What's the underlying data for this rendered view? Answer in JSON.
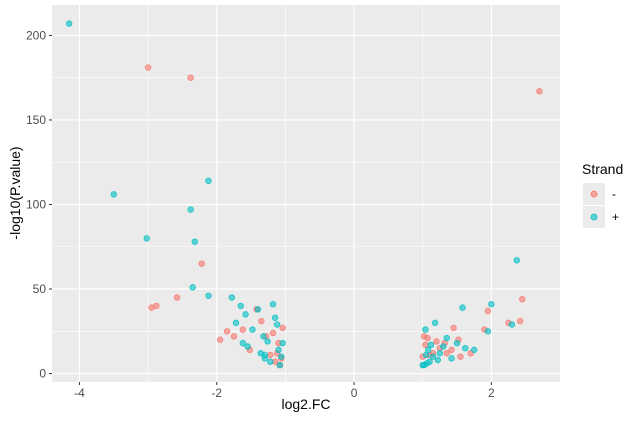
{
  "chart_data": {
    "type": "scatter",
    "xlabel": "log2.FC",
    "ylabel": "-log10(P.value)",
    "xlim": [
      -4.4,
      3.0
    ],
    "ylim": [
      -5,
      218
    ],
    "x_ticks": [
      -4,
      -2,
      0,
      2
    ],
    "y_ticks": [
      0,
      50,
      100,
      150,
      200
    ],
    "x_tick_labels": [
      "-4",
      "-2",
      "0",
      "2"
    ],
    "y_tick_labels": [
      "0",
      "50",
      "100",
      "150",
      "200"
    ],
    "grid": true,
    "legend": {
      "title": "Strand",
      "placement": "right"
    },
    "colors": {
      "-": "#F8766D",
      "+": "#00BFC4",
      "panel": "#EBEBEB",
      "grid": "#FFFFFF"
    },
    "series": [
      {
        "name": "-",
        "points": [
          [
            -3.0,
            181
          ],
          [
            -2.38,
            175
          ],
          [
            -2.22,
            65
          ],
          [
            -2.58,
            45
          ],
          [
            -2.88,
            40
          ],
          [
            -2.95,
            39
          ],
          [
            -1.95,
            20
          ],
          [
            -1.85,
            25
          ],
          [
            -1.75,
            22
          ],
          [
            -1.62,
            26
          ],
          [
            -1.52,
            14
          ],
          [
            -1.42,
            38
          ],
          [
            -1.35,
            31
          ],
          [
            -1.28,
            22
          ],
          [
            -1.22,
            11
          ],
          [
            -1.18,
            24
          ],
          [
            -1.15,
            7
          ],
          [
            -1.12,
            12
          ],
          [
            -1.1,
            18
          ],
          [
            -1.08,
            5
          ],
          [
            -1.06,
            9
          ],
          [
            -1.04,
            27
          ],
          [
            2.7,
            167
          ],
          [
            2.45,
            44
          ],
          [
            2.42,
            31
          ],
          [
            2.25,
            30
          ],
          [
            1.95,
            37
          ],
          [
            1.9,
            26
          ],
          [
            1.7,
            12
          ],
          [
            1.55,
            10
          ],
          [
            1.52,
            20
          ],
          [
            1.45,
            27
          ],
          [
            1.42,
            14
          ],
          [
            1.35,
            12
          ],
          [
            1.32,
            18
          ],
          [
            1.25,
            15
          ],
          [
            1.2,
            19
          ],
          [
            1.15,
            12
          ],
          [
            1.1,
            11
          ],
          [
            1.07,
            21
          ],
          [
            1.04,
            17
          ],
          [
            1.02,
            22
          ],
          [
            1.0,
            10
          ]
        ]
      },
      {
        "name": "+",
        "points": [
          [
            -4.15,
            207
          ],
          [
            -3.5,
            106
          ],
          [
            -3.02,
            80
          ],
          [
            -2.12,
            114
          ],
          [
            -2.38,
            97
          ],
          [
            -2.32,
            78
          ],
          [
            -2.35,
            51
          ],
          [
            -2.12,
            46
          ],
          [
            -1.78,
            45
          ],
          [
            -1.72,
            30
          ],
          [
            -1.65,
            40
          ],
          [
            -1.62,
            18
          ],
          [
            -1.58,
            35
          ],
          [
            -1.55,
            16
          ],
          [
            -1.48,
            26
          ],
          [
            -1.4,
            38
          ],
          [
            -1.32,
            22
          ],
          [
            -1.3,
            11
          ],
          [
            -1.26,
            19
          ],
          [
            -1.22,
            7
          ],
          [
            -1.18,
            41
          ],
          [
            -1.15,
            33
          ],
          [
            -1.12,
            29
          ],
          [
            -1.1,
            14
          ],
          [
            -1.08,
            5
          ],
          [
            -1.06,
            10
          ],
          [
            -1.04,
            18
          ],
          [
            -1.3,
            9
          ],
          [
            -1.36,
            12
          ],
          [
            2.37,
            67
          ],
          [
            2.3,
            29
          ],
          [
            2.0,
            41
          ],
          [
            1.95,
            25
          ],
          [
            1.75,
            14
          ],
          [
            1.62,
            15
          ],
          [
            1.58,
            39
          ],
          [
            1.5,
            18
          ],
          [
            1.42,
            9
          ],
          [
            1.35,
            21
          ],
          [
            1.3,
            16
          ],
          [
            1.25,
            12
          ],
          [
            1.22,
            8
          ],
          [
            1.18,
            30
          ],
          [
            1.15,
            10
          ],
          [
            1.12,
            17
          ],
          [
            1.1,
            7
          ],
          [
            1.08,
            14
          ],
          [
            1.06,
            6
          ],
          [
            1.04,
            26
          ],
          [
            1.02,
            5
          ],
          [
            1.0,
            5
          ],
          [
            1.05,
            11
          ]
        ]
      }
    ]
  }
}
